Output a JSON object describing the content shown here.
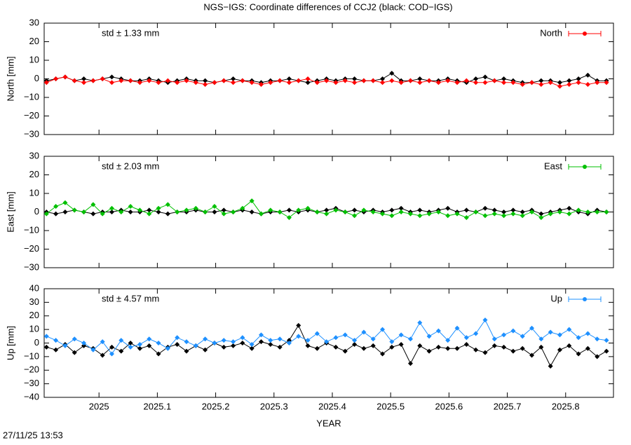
{
  "title": "NGS−IGS: Coordinate differences of CCJ2 (black: COD−IGS)",
  "x_label": "YEAR",
  "timestamp": "27/11/25 13:53",
  "chart_data": [
    {
      "type": "line",
      "y_label": "North [mm]",
      "annotation": "std ± 1.33 mm",
      "annotation_color": "#ff0000",
      "xlim": [
        2024.906,
        2025.882
      ],
      "xticks": [
        2025,
        2025.1,
        2025.2,
        2025.3,
        2025.4,
        2025.5,
        2025.6,
        2025.7,
        2025.8
      ],
      "ylim": [
        -30,
        30
      ],
      "yticks": [
        {
          "value": -30,
          "label": "−30"
        },
        {
          "value": -20,
          "label": "−20"
        },
        {
          "value": -10,
          "label": "−10"
        },
        0,
        10,
        20,
        30
      ],
      "x": [
        2024.91,
        2024.926,
        2024.942,
        2024.958,
        2024.974,
        2024.99,
        2025.006,
        2025.022,
        2025.038,
        2025.054,
        2025.07,
        2025.086,
        2025.102,
        2025.118,
        2025.134,
        2025.15,
        2025.166,
        2025.182,
        2025.198,
        2025.214,
        2025.23,
        2025.246,
        2025.262,
        2025.278,
        2025.294,
        2025.31,
        2025.326,
        2025.342,
        2025.358,
        2025.374,
        2025.39,
        2025.406,
        2025.422,
        2025.438,
        2025.454,
        2025.47,
        2025.486,
        2025.502,
        2025.518,
        2025.534,
        2025.55,
        2025.566,
        2025.582,
        2025.598,
        2025.614,
        2025.63,
        2025.646,
        2025.662,
        2025.678,
        2025.694,
        2025.71,
        2025.726,
        2025.742,
        2025.758,
        2025.774,
        2025.79,
        2025.806,
        2025.822,
        2025.838,
        2025.854,
        2025.87
      ],
      "series": [
        {
          "color": "#000000",
          "values": [
            -1,
            0,
            1,
            -1,
            0,
            -1,
            0,
            1,
            0,
            -1,
            -1,
            0,
            -1,
            -2,
            -1,
            0,
            -1,
            -1,
            -2,
            -1,
            0,
            -1,
            -1,
            -2,
            -1,
            -1,
            0,
            -1,
            -2,
            -1,
            0,
            -1,
            0,
            0,
            -1,
            -1,
            0,
            3,
            -1,
            -1,
            0,
            -1,
            -1,
            0,
            -1,
            -2,
            0,
            1,
            -1,
            0,
            -1,
            -2,
            -2,
            -1,
            -1,
            -2,
            -1,
            0,
            2,
            -1,
            -1
          ]
        },
        {
          "name": "North",
          "color": "#ff0000",
          "values": [
            -2,
            0,
            1,
            -1,
            -2,
            -1,
            0,
            -2,
            -1,
            -1,
            -2,
            -1,
            -2,
            -1,
            -2,
            -1,
            -2,
            -3,
            -2,
            -1,
            -2,
            -1,
            -2,
            -3,
            -2,
            -1,
            -2,
            -1,
            0,
            -2,
            -1,
            -2,
            -1,
            -2,
            -1,
            -1,
            -2,
            -1,
            -2,
            -1,
            -2,
            -1,
            -2,
            -1,
            -2,
            -1,
            -2,
            -2,
            -1,
            -2,
            -2,
            -3,
            -2,
            -3,
            -2,
            -4,
            -3,
            -2,
            -3,
            -2,
            -2
          ]
        }
      ]
    },
    {
      "type": "line",
      "y_label": "East [mm]",
      "annotation": "std ± 2.03 mm",
      "annotation_color": "#00c000",
      "xlim": [
        2024.906,
        2025.882
      ],
      "xticks": [
        2025,
        2025.1,
        2025.2,
        2025.3,
        2025.4,
        2025.5,
        2025.6,
        2025.7,
        2025.8
      ],
      "ylim": [
        -30,
        30
      ],
      "yticks": [
        {
          "value": -30,
          "label": "−30"
        },
        {
          "value": -20,
          "label": "−20"
        },
        {
          "value": -10,
          "label": "−10"
        },
        0,
        10,
        20,
        30
      ],
      "x": [
        2024.91,
        2024.926,
        2024.942,
        2024.958,
        2024.974,
        2024.99,
        2025.006,
        2025.022,
        2025.038,
        2025.054,
        2025.07,
        2025.086,
        2025.102,
        2025.118,
        2025.134,
        2025.15,
        2025.166,
        2025.182,
        2025.198,
        2025.214,
        2025.23,
        2025.246,
        2025.262,
        2025.278,
        2025.294,
        2025.31,
        2025.326,
        2025.342,
        2025.358,
        2025.374,
        2025.39,
        2025.406,
        2025.422,
        2025.438,
        2025.454,
        2025.47,
        2025.486,
        2025.502,
        2025.518,
        2025.534,
        2025.55,
        2025.566,
        2025.582,
        2025.598,
        2025.614,
        2025.63,
        2025.646,
        2025.662,
        2025.678,
        2025.694,
        2025.71,
        2025.726,
        2025.742,
        2025.758,
        2025.774,
        2025.79,
        2025.806,
        2025.822,
        2025.838,
        2025.854,
        2025.87
      ],
      "series": [
        {
          "color": "#000000",
          "values": [
            0,
            -1,
            0,
            1,
            0,
            -1,
            0,
            0,
            1,
            0,
            0,
            1,
            0,
            -1,
            0,
            0,
            1,
            0,
            0,
            1,
            0,
            1,
            0,
            -1,
            0,
            0,
            1,
            0,
            1,
            0,
            1,
            2,
            0,
            1,
            0,
            1,
            0,
            1,
            2,
            0,
            1,
            0,
            1,
            2,
            0,
            1,
            0,
            2,
            1,
            0,
            1,
            0,
            1,
            -1,
            0,
            1,
            2,
            0,
            -1,
            1,
            0
          ]
        },
        {
          "name": "East",
          "color": "#00c000",
          "values": [
            -1,
            3,
            5,
            1,
            0,
            4,
            -1,
            2,
            0,
            3,
            1,
            -1,
            2,
            4,
            0,
            1,
            2,
            0,
            3,
            -1,
            0,
            2,
            6,
            -1,
            1,
            0,
            -3,
            1,
            2,
            0,
            -1,
            1,
            0,
            -2,
            1,
            0,
            -1,
            -2,
            0,
            -1,
            -2,
            -1,
            0,
            -2,
            -1,
            -3,
            0,
            -2,
            -1,
            -2,
            -1,
            -2,
            0,
            -3,
            -1,
            0,
            -1,
            1,
            0,
            0,
            0
          ]
        }
      ]
    },
    {
      "type": "line",
      "y_label": "Up [mm]",
      "annotation": "std ± 4.57 mm",
      "annotation_color": "#1e90ff",
      "xlim": [
        2024.906,
        2025.882
      ],
      "xticks": [
        2025,
        2025.1,
        2025.2,
        2025.3,
        2025.4,
        2025.5,
        2025.6,
        2025.7,
        2025.8
      ],
      "ylim": [
        -40,
        40
      ],
      "yticks": [
        {
          "value": -40,
          "label": "−40"
        },
        {
          "value": -30,
          "label": "−30"
        },
        {
          "value": -20,
          "label": "−20"
        },
        {
          "value": -10,
          "label": "−10"
        },
        0,
        10,
        20,
        30,
        40
      ],
      "x": [
        2024.91,
        2024.926,
        2024.942,
        2024.958,
        2024.974,
        2024.99,
        2025.006,
        2025.022,
        2025.038,
        2025.054,
        2025.07,
        2025.086,
        2025.102,
        2025.118,
        2025.134,
        2025.15,
        2025.166,
        2025.182,
        2025.198,
        2025.214,
        2025.23,
        2025.246,
        2025.262,
        2025.278,
        2025.294,
        2025.31,
        2025.326,
        2025.342,
        2025.358,
        2025.374,
        2025.39,
        2025.406,
        2025.422,
        2025.438,
        2025.454,
        2025.47,
        2025.486,
        2025.502,
        2025.518,
        2025.534,
        2025.55,
        2025.566,
        2025.582,
        2025.598,
        2025.614,
        2025.63,
        2025.646,
        2025.662,
        2025.678,
        2025.694,
        2025.71,
        2025.726,
        2025.742,
        2025.758,
        2025.774,
        2025.79,
        2025.806,
        2025.822,
        2025.838,
        2025.854,
        2025.87
      ],
      "series": [
        {
          "color": "#000000",
          "values": [
            -3,
            -5,
            -1,
            -7,
            -2,
            -4,
            -9,
            -3,
            -6,
            0,
            -4,
            -2,
            -8,
            -3,
            -1,
            -6,
            -2,
            -5,
            0,
            -3,
            -2,
            0,
            -4,
            1,
            -1,
            -3,
            2,
            13,
            -2,
            -4,
            0,
            -3,
            -6,
            -1,
            -4,
            -2,
            -8,
            -3,
            -1,
            -15,
            -2,
            -6,
            -3,
            -4,
            -4,
            -1,
            -5,
            -7,
            -2,
            -3,
            -6,
            -4,
            -9,
            -3,
            -17,
            -5,
            -2,
            -8,
            -4,
            -10,
            -6
          ]
        },
        {
          "name": "Up",
          "color": "#1e90ff",
          "values": [
            5,
            2,
            -2,
            3,
            0,
            -5,
            1,
            -8,
            2,
            -3,
            -1,
            3,
            0,
            -4,
            4,
            1,
            -2,
            3,
            0,
            2,
            1,
            4,
            -1,
            6,
            2,
            3,
            0,
            5,
            2,
            7,
            1,
            4,
            6,
            2,
            8,
            3,
            10,
            1,
            6,
            3,
            15,
            5,
            9,
            2,
            11,
            4,
            7,
            17,
            3,
            6,
            9,
            5,
            11,
            3,
            8,
            6,
            10,
            4,
            7,
            3,
            2
          ]
        }
      ]
    }
  ]
}
